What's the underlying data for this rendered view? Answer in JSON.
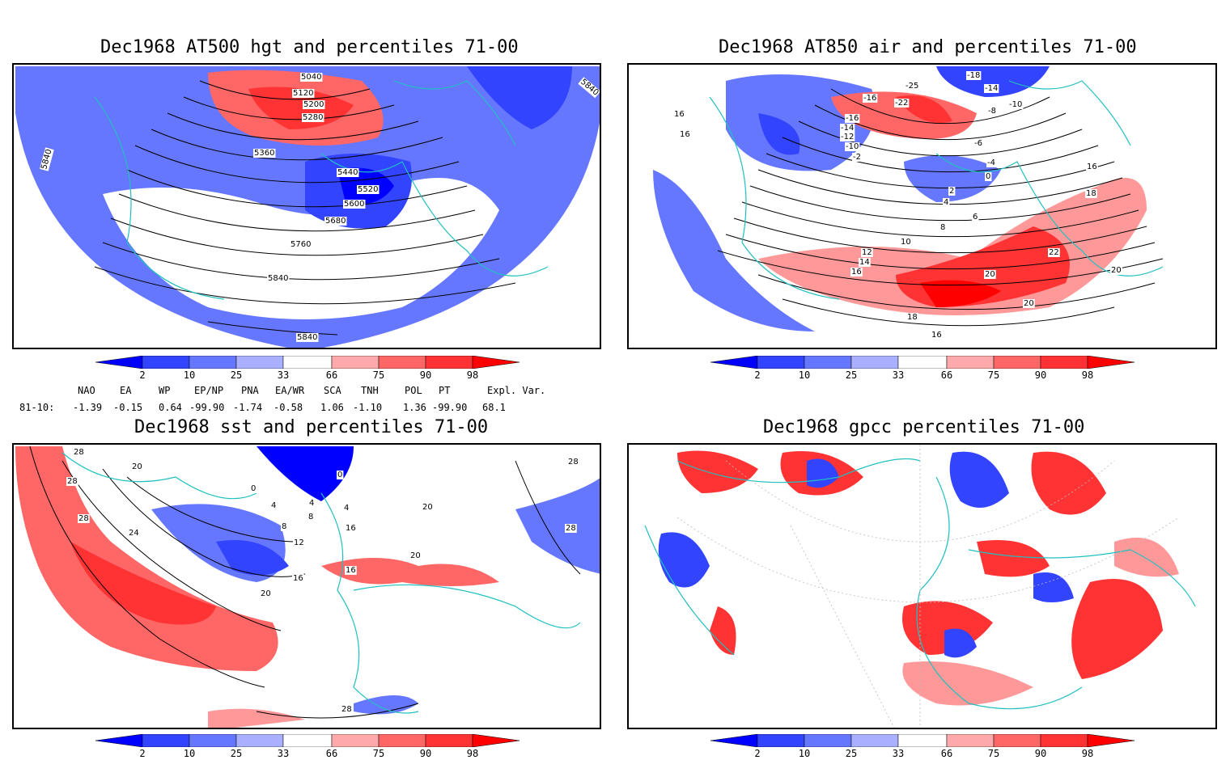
{
  "panels": [
    {
      "id": "hgt",
      "title": "Dec1968 AT500 hgt and percentiles 71-00",
      "contour_labels": [
        "5040",
        "5120",
        "5200",
        "5280",
        "5360",
        "5440",
        "5520",
        "5600",
        "5680",
        "5760",
        "5840",
        "5840",
        "5840",
        "5840"
      ]
    },
    {
      "id": "air",
      "title": "Dec1968 AT850 air and percentiles 71-00",
      "contour_labels": [
        "-16",
        "-14",
        "-12",
        "-10",
        "-25",
        "-22",
        "-18",
        "-16",
        "-14",
        "-10",
        "-8",
        "-6",
        "-4",
        "-2",
        "0",
        "2",
        "4",
        "6",
        "8",
        "10",
        "12",
        "14",
        "16",
        "16",
        "16",
        "16",
        "18",
        "18",
        "20",
        "20",
        "20",
        "22",
        "16"
      ]
    },
    {
      "id": "sst",
      "title": "Dec1968 sst and percentiles 71-00",
      "contour_labels": [
        "28",
        "28",
        "28",
        "24",
        "20",
        "20",
        "16",
        "16",
        "12",
        "8",
        "8",
        "4",
        "4",
        "0",
        "0",
        "4",
        "16",
        "20",
        "20",
        "28",
        "28",
        "28"
      ]
    },
    {
      "id": "gpcc",
      "title": "Dec1968 gpcc percentiles 71-00",
      "contour_labels": []
    }
  ],
  "colorbar": {
    "labels": [
      "2",
      "10",
      "25",
      "33",
      "66",
      "75",
      "90",
      "98"
    ],
    "blue_colors": [
      "#0000ff",
      "#3344ff",
      "#6677ff",
      "#aab0ff"
    ],
    "red_colors": [
      "#ffaaaa",
      "#ff6666",
      "#ff3333",
      "#ff0000"
    ]
  },
  "indices": {
    "headers": [
      "NAO",
      "EA",
      "WP",
      "EP/NP",
      "PNA",
      "EA/WR",
      "SCA",
      "TNH",
      "POL",
      "PT",
      "Expl. Var."
    ],
    "row_label": "81-10:",
    "values": [
      "-1.39",
      "-0.15",
      "0.64",
      "-99.90",
      "-1.74",
      "-0.58",
      "1.06",
      "-1.10",
      "1.36",
      "-99.90",
      "68.1"
    ]
  }
}
